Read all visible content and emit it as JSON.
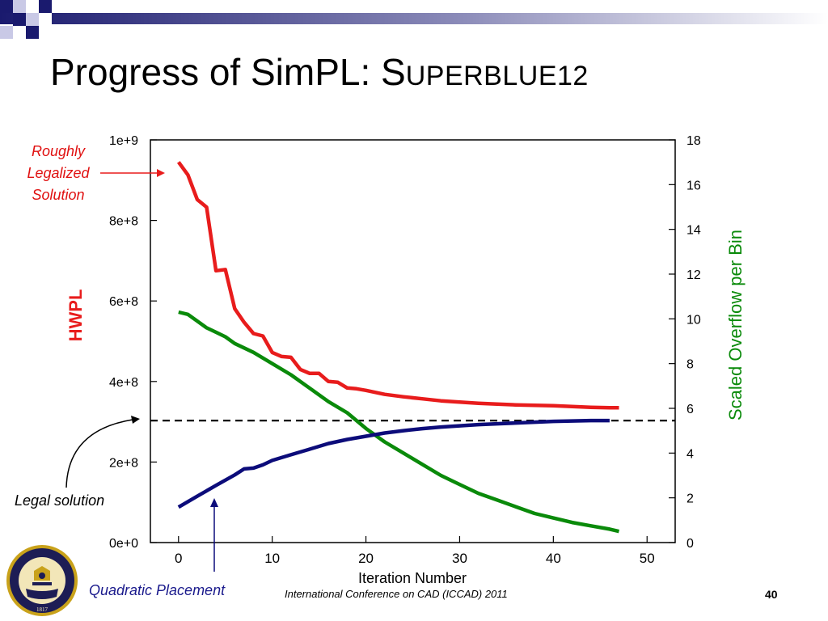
{
  "slide": {
    "title_main": "Progress of SimPL: S",
    "title_smallcaps": "UPERBLUE12",
    "footer": "International Conference on CAD (ICCAD) 2011",
    "page_number": "40",
    "colors": {
      "title_deco": "#1a1a6e",
      "red": "#e81c1c",
      "green": "#0a8a0a",
      "navy": "#0c0c7a"
    }
  },
  "annotations": {
    "roughly_legalized": [
      "Roughly",
      "Legalized",
      "Solution"
    ],
    "legal_solution": "Legal solution",
    "quadratic_placement": "Quadratic Placement"
  },
  "logo": {
    "name": "university-of-michigan-seal",
    "text": [
      "THE UNIVERSITY OF MICHIGAN",
      "1817"
    ]
  },
  "chart_data": {
    "type": "line",
    "xlabel": "Iteration Number",
    "ylabel_left": "HWPL",
    "ylabel_right": "Scaled Overflow per Bin",
    "xlim": [
      -3,
      53
    ],
    "ylim_left": [
      0,
      1000000000
    ],
    "ylim_right": [
      0,
      18
    ],
    "x_ticks": [
      0,
      10,
      20,
      30,
      40,
      50
    ],
    "x_tick_labels": [
      "0",
      "10",
      "20",
      "30",
      "40",
      "50"
    ],
    "y_left_ticks": [
      0,
      200000000,
      400000000,
      600000000,
      800000000,
      1000000000
    ],
    "y_left_tick_labels": [
      "0e+0",
      "2e+8",
      "4e+8",
      "6e+8",
      "8e+8",
      "1e+9"
    ],
    "y_right_ticks": [
      0,
      2,
      4,
      6,
      8,
      10,
      12,
      14,
      16,
      18
    ],
    "y_right_tick_labels": [
      "0",
      "2",
      "4",
      "6",
      "8",
      "10",
      "12",
      "14",
      "16",
      "18"
    ],
    "grid": false,
    "series": [
      {
        "axis": "left",
        "color": "#e81c1c",
        "x": [
          0,
          1,
          2,
          3,
          4,
          5,
          6,
          7,
          8,
          9,
          10,
          11,
          12,
          13,
          14,
          15,
          16,
          17,
          18,
          19,
          20,
          22,
          24,
          26,
          28,
          30,
          32,
          34,
          36,
          38,
          40,
          42,
          44,
          46,
          47
        ],
        "y": [
          945000000,
          913000000,
          852000000,
          833000000,
          675000000,
          678000000,
          581000000,
          547000000,
          519000000,
          513000000,
          472000000,
          462000000,
          460000000,
          430000000,
          420000000,
          420000000,
          400000000,
          398000000,
          384000000,
          382000000,
          378000000,
          368000000,
          362000000,
          357000000,
          352000000,
          349000000,
          346000000,
          344000000,
          342000000,
          341000000,
          340000000,
          338000000,
          336000000,
          335000000,
          335000000
        ]
      },
      {
        "axis": "right",
        "color": "#0a8a0a",
        "x": [
          0,
          1,
          2,
          3,
          4,
          5,
          6,
          8,
          10,
          12,
          14,
          16,
          18,
          20,
          22,
          24,
          26,
          28,
          30,
          32,
          34,
          36,
          38,
          40,
          42,
          44,
          46,
          47
        ],
        "y": [
          10.3,
          10.2,
          9.9,
          9.6,
          9.4,
          9.2,
          8.9,
          8.5,
          8.0,
          7.5,
          6.9,
          6.3,
          5.8,
          5.1,
          4.5,
          4.0,
          3.5,
          3.0,
          2.6,
          2.2,
          1.9,
          1.6,
          1.3,
          1.1,
          0.9,
          0.75,
          0.6,
          0.5
        ]
      },
      {
        "axis": "left",
        "color": "#0c0c7a",
        "x": [
          0,
          2,
          4,
          6,
          7,
          8,
          9,
          10,
          12,
          14,
          16,
          18,
          20,
          22,
          24,
          26,
          28,
          30,
          32,
          34,
          36,
          38,
          40,
          42,
          44,
          46
        ],
        "y": [
          88000000,
          115000000,
          142000000,
          168000000,
          183000000,
          185000000,
          193000000,
          204000000,
          218000000,
          232000000,
          246000000,
          256000000,
          264000000,
          272000000,
          278000000,
          283000000,
          287000000,
          290000000,
          293000000,
          295000000,
          297000000,
          299000000,
          301000000,
          302000000,
          303000000,
          303000000
        ]
      }
    ],
    "reference_line": {
      "axis": "left",
      "y": 303000000,
      "style": "dashed",
      "color": "#000000"
    }
  }
}
